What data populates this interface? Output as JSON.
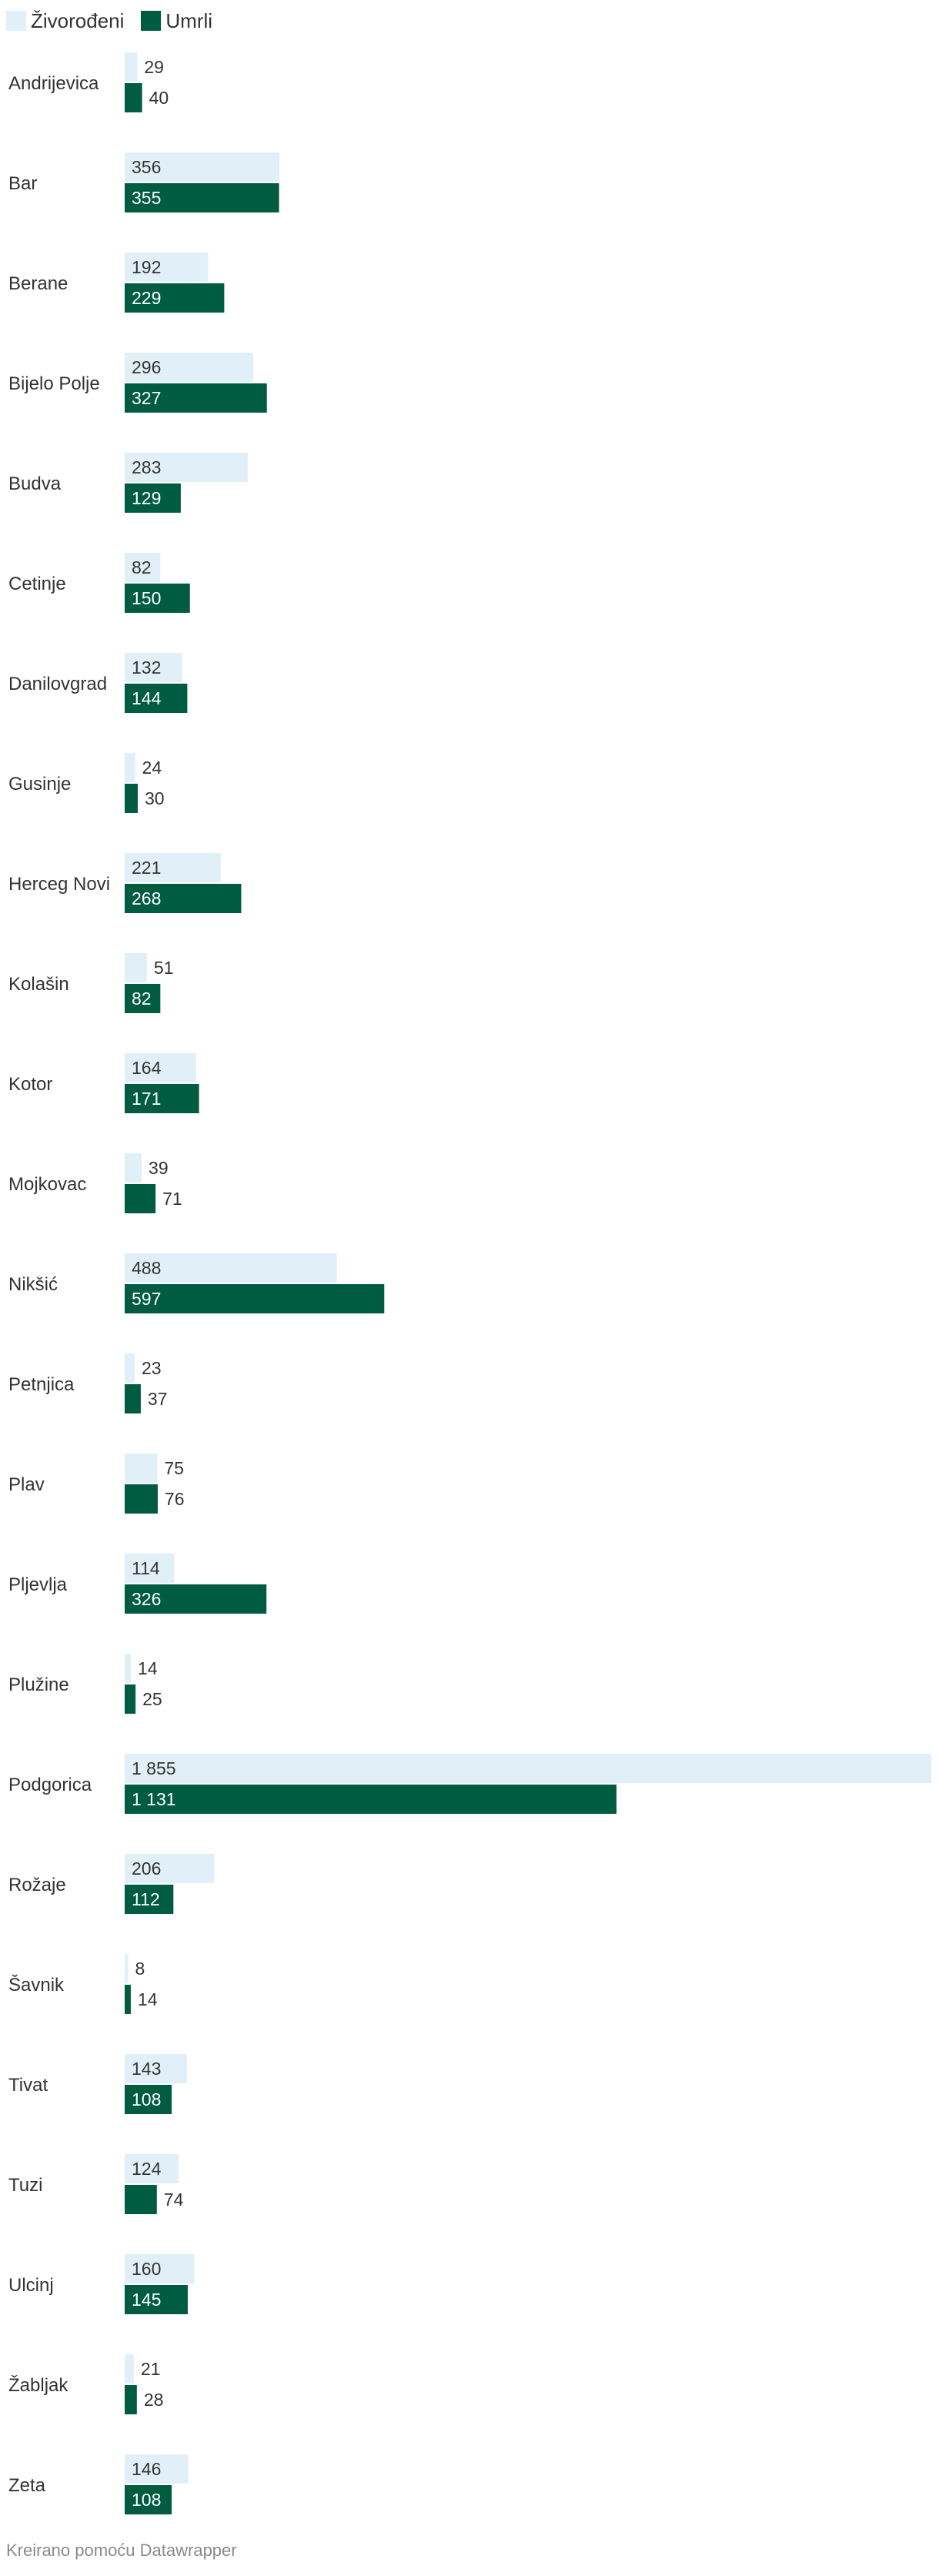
{
  "chart_data": {
    "type": "bar",
    "orientation": "horizontal",
    "categories": [
      "Andrijevica",
      "Bar",
      "Berane",
      "Bijelo Polje",
      "Budva",
      "Cetinje",
      "Danilovgrad",
      "Gusinje",
      "Herceg Novi",
      "Kolašin",
      "Kotor",
      "Mojkovac",
      "Nikšić",
      "Petnjica",
      "Plav",
      "Pljevlja",
      "Plužine",
      "Podgorica",
      "Rožaje",
      "Šavnik",
      "Tivat",
      "Tuzi",
      "Ulcinj",
      "Žabljak",
      "Zeta"
    ],
    "series": [
      {
        "name": "Živorođeni",
        "color": "#e1f0f8",
        "label_color": "#333333",
        "values": [
          29,
          356,
          192,
          296,
          283,
          82,
          132,
          24,
          221,
          51,
          164,
          39,
          488,
          23,
          75,
          114,
          14,
          1855,
          206,
          8,
          143,
          124,
          160,
          21,
          146
        ],
        "labels": [
          "29",
          "356",
          "192",
          "296",
          "283",
          "82",
          "132",
          "24",
          "221",
          "51",
          "164",
          "39",
          "488",
          "23",
          "75",
          "114",
          "14",
          "1 855",
          "206",
          "8",
          "143",
          "124",
          "160",
          "21",
          "146"
        ]
      },
      {
        "name": "Umrli",
        "color": "#005c40",
        "label_color": "#ffffff",
        "values": [
          40,
          355,
          229,
          327,
          129,
          150,
          144,
          30,
          268,
          82,
          171,
          71,
          597,
          37,
          76,
          326,
          25,
          1131,
          112,
          14,
          108,
          74,
          145,
          28,
          108
        ],
        "labels": [
          "40",
          "355",
          "229",
          "327",
          "129",
          "150",
          "144",
          "30",
          "268",
          "82",
          "171",
          "71",
          "597",
          "37",
          "76",
          "326",
          "25",
          "1 131",
          "112",
          "14",
          "108",
          "74",
          "145",
          "28",
          "108"
        ]
      }
    ],
    "xlim": [
      0,
      1855
    ],
    "grid": false,
    "legend_position": "top-left"
  },
  "legend": {
    "items": [
      {
        "label": "Živorođeni",
        "color": "#e1f0f8"
      },
      {
        "label": "Umrli",
        "color": "#005c40"
      }
    ]
  },
  "footer": {
    "credit": "Kreirano pomoću Datawrapper"
  }
}
